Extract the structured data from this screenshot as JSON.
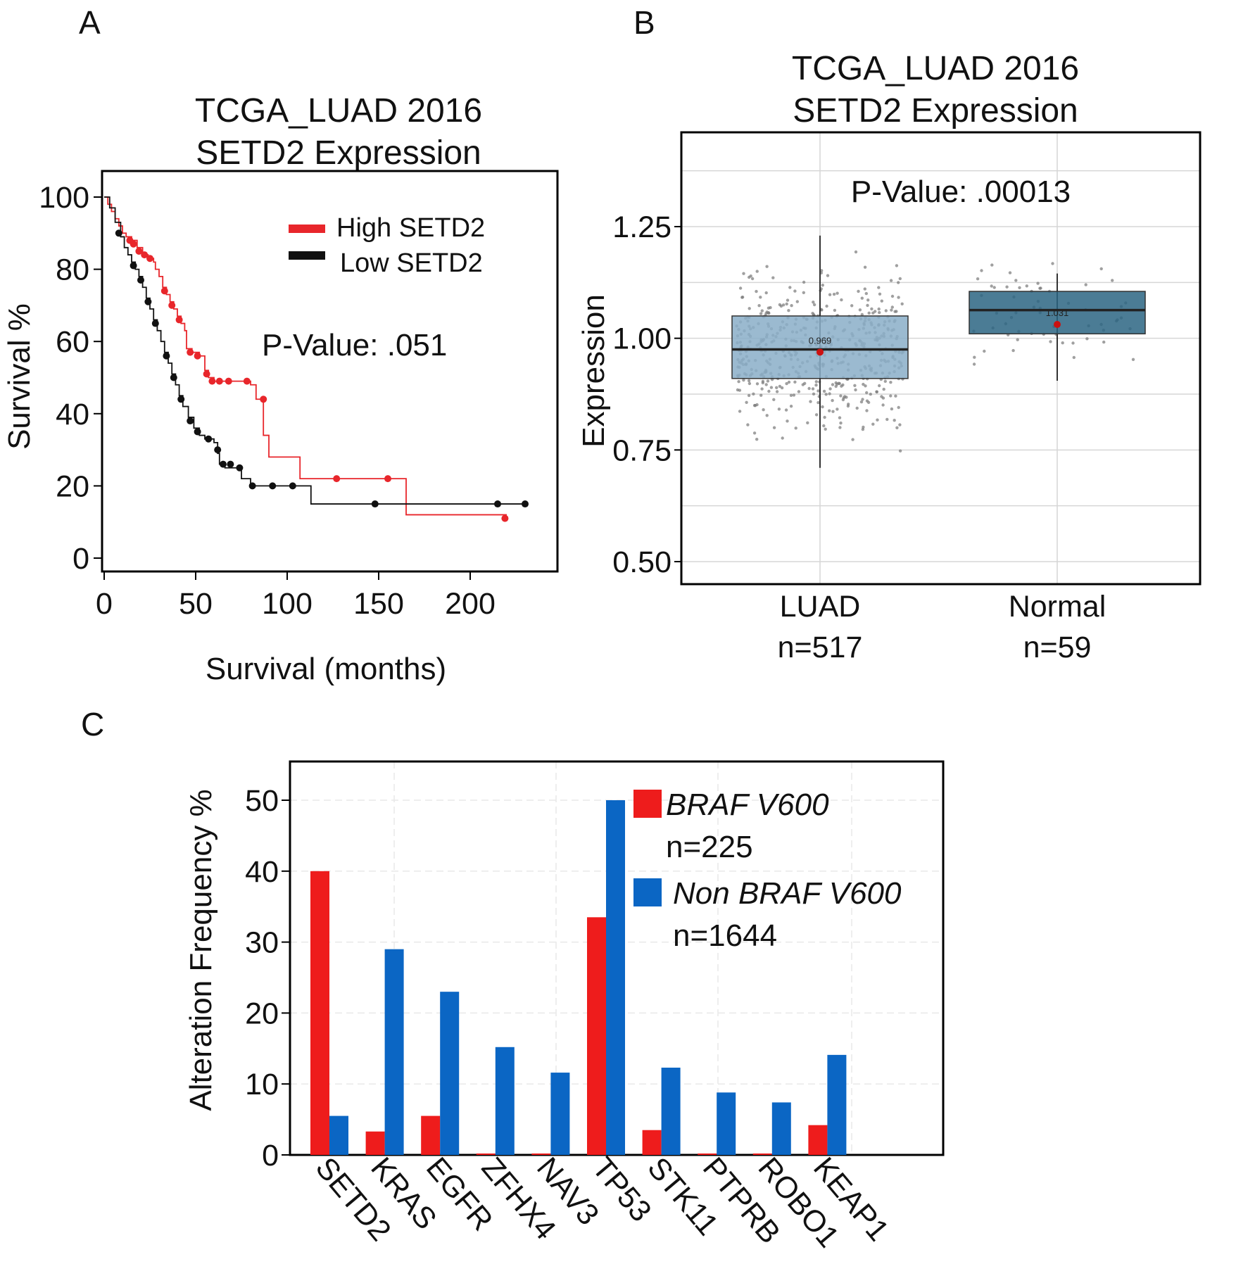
{
  "chart_data": [
    {
      "panel": "A",
      "type": "line",
      "subtype": "kaplan-meier",
      "title": [
        "TCGA_LUAD 2016",
        "SETD2 Expression"
      ],
      "xlabel": "Survival (months)",
      "ylabel": "Survival %",
      "xlim": [
        0,
        250
      ],
      "ylim": [
        0,
        100
      ],
      "xticks": [
        0,
        50,
        100,
        150,
        200
      ],
      "yticks": [
        0,
        20,
        40,
        60,
        80,
        100
      ],
      "annotation": "P-Value: .051",
      "legend_position": "top-right",
      "series": [
        {
          "name": "High SETD2",
          "color": "#e8262b",
          "steps": [
            [
              0,
              100
            ],
            [
              2,
              98
            ],
            [
              4,
              96
            ],
            [
              6,
              94
            ],
            [
              8,
              92
            ],
            [
              10,
              90
            ],
            [
              12,
              89
            ],
            [
              15,
              88
            ],
            [
              18,
              86
            ],
            [
              21,
              84
            ],
            [
              24,
              83
            ],
            [
              27,
              82
            ],
            [
              28,
              80
            ],
            [
              30,
              78
            ],
            [
              32,
              75
            ],
            [
              34,
              73
            ],
            [
              36,
              71
            ],
            [
              38,
              69
            ],
            [
              40,
              67
            ],
            [
              42,
              65
            ],
            [
              44,
              63
            ],
            [
              45,
              58
            ],
            [
              48,
              57
            ],
            [
              52,
              56
            ],
            [
              55,
              52
            ],
            [
              57,
              50
            ],
            [
              60,
              49
            ],
            [
              64,
              49
            ],
            [
              70,
              49
            ],
            [
              80,
              48
            ],
            [
              83,
              44
            ],
            [
              87,
              34
            ],
            [
              90,
              28
            ],
            [
              107,
              22
            ],
            [
              125,
              22
            ],
            [
              150,
              22
            ],
            [
              165,
              12
            ],
            [
              220,
              12
            ]
          ],
          "censored": [
            [
              14,
              88
            ],
            [
              16,
              87
            ],
            [
              19,
              85
            ],
            [
              22,
              84
            ],
            [
              25,
              83
            ],
            [
              33,
              74
            ],
            [
              37,
              70
            ],
            [
              41,
              66
            ],
            [
              47,
              57
            ],
            [
              51,
              56
            ],
            [
              56,
              51
            ],
            [
              59,
              49
            ],
            [
              63,
              49
            ],
            [
              68,
              49
            ],
            [
              78,
              49
            ],
            [
              87,
              44
            ],
            [
              127,
              22
            ],
            [
              155,
              22
            ],
            [
              219,
              11
            ]
          ]
        },
        {
          "name": "Low SETD2",
          "color": "#111111",
          "steps": [
            [
              0,
              100
            ],
            [
              3,
              97
            ],
            [
              6,
              93
            ],
            [
              9,
              89
            ],
            [
              11,
              86
            ],
            [
              13,
              84
            ],
            [
              15,
              82
            ],
            [
              17,
              80
            ],
            [
              19,
              78
            ],
            [
              21,
              75
            ],
            [
              23,
              72
            ],
            [
              25,
              69
            ],
            [
              27,
              66
            ],
            [
              29,
              63
            ],
            [
              31,
              60
            ],
            [
              33,
              57
            ],
            [
              35,
              54
            ],
            [
              37,
              51
            ],
            [
              39,
              48
            ],
            [
              41,
              45
            ],
            [
              43,
              42
            ],
            [
              46,
              39
            ],
            [
              49,
              36
            ],
            [
              52,
              34
            ],
            [
              55,
              33
            ],
            [
              60,
              32
            ],
            [
              62,
              29
            ],
            [
              63,
              26
            ],
            [
              66,
              25
            ],
            [
              70,
              25
            ],
            [
              75,
              22
            ],
            [
              80,
              20
            ],
            [
              95,
              20
            ],
            [
              105,
              20
            ],
            [
              113,
              15
            ],
            [
              150,
              15
            ],
            [
              230,
              15
            ]
          ],
          "censored": [
            [
              8,
              90
            ],
            [
              16,
              81
            ],
            [
              20,
              77
            ],
            [
              24,
              71
            ],
            [
              28,
              65
            ],
            [
              34,
              56
            ],
            [
              38,
              50
            ],
            [
              42,
              44
            ],
            [
              47,
              38
            ],
            [
              51,
              35
            ],
            [
              57,
              33
            ],
            [
              62,
              30
            ],
            [
              65,
              26
            ],
            [
              69,
              26
            ],
            [
              74,
              25
            ],
            [
              81,
              20
            ],
            [
              92,
              20
            ],
            [
              103,
              20
            ],
            [
              148,
              15
            ],
            [
              215,
              15
            ],
            [
              230,
              15
            ]
          ]
        }
      ]
    },
    {
      "panel": "B",
      "type": "boxplot",
      "title": [
        "TCGA_LUAD 2016",
        "SETD2 Expression"
      ],
      "ylabel": "Expression",
      "ylim": [
        0.48,
        1.45
      ],
      "yticks": [
        0.5,
        0.75,
        1.0,
        1.25
      ],
      "ytick_labels": [
        "0.50",
        "0.75",
        "1.00",
        "1.25"
      ],
      "annotation": "P-Value: .00013",
      "categories": [
        {
          "label": "LUAD",
          "n_label": "n=517",
          "color": "#8aaec8",
          "whisker_low": 0.71,
          "q1": 0.91,
          "median": 0.975,
          "q3": 1.05,
          "whisker_high": 1.23,
          "mean": 0.969,
          "mean_label": "0.969",
          "n": 517
        },
        {
          "label": "Normal",
          "n_label": "n=59",
          "color": "#2c6583",
          "whisker_low": 0.905,
          "q1": 1.01,
          "median": 1.063,
          "q3": 1.105,
          "whisker_high": 1.145,
          "mean": 1.031,
          "mean_label": "1.031",
          "n": 59
        }
      ],
      "jitter_points_shown": true,
      "mean_marker_color": "#cc1111"
    },
    {
      "panel": "C",
      "type": "bar",
      "ylabel": "Alteration Frequency %",
      "ylim": [
        0,
        55
      ],
      "yticks": [
        0,
        10,
        20,
        30,
        40,
        50
      ],
      "categories": [
        "SETD2",
        "KRAS",
        "EGFR",
        "ZFHX4",
        "NAV3",
        "TP53",
        "STK11",
        "PTPRB",
        "ROBO1",
        "KEAP1"
      ],
      "legend_position": "top-right",
      "series": [
        {
          "name": "BRAF V600",
          "n_label": "n=225",
          "color": "#ee1c1c",
          "values": [
            40,
            3.3,
            5.5,
            0.2,
            0.2,
            33.5,
            3.5,
            0.2,
            0.2,
            4.2
          ]
        },
        {
          "name": "Non BRAF V600",
          "n_label": "n=1644",
          "color": "#0b66c4",
          "values": [
            5.5,
            29,
            23,
            15.2,
            11.6,
            50,
            12.3,
            8.8,
            7.4,
            14.1
          ]
        }
      ]
    }
  ],
  "panel_labels": [
    "A",
    "B",
    "C"
  ]
}
